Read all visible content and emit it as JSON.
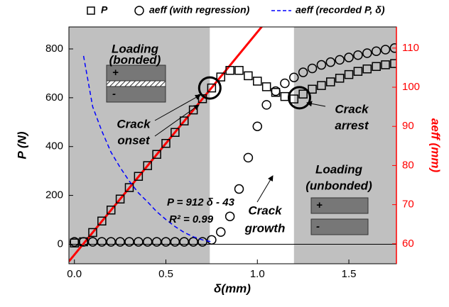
{
  "chart_data": {
    "type": "scatter",
    "xlabel": "δ(mm)",
    "ylabel": "P (N)",
    "y2label": "aeff (mm)",
    "xlim": [
      -0.03,
      1.76
    ],
    "ylim": [
      -80,
      890
    ],
    "y2lim": [
      54.9,
      115.4
    ],
    "xticks": [
      {
        "value": 0,
        "label": "0.0"
      },
      {
        "value": 0.5,
        "label": "0.5"
      },
      {
        "value": 1,
        "label": "1.0"
      },
      {
        "value": 1.5,
        "label": "1.5"
      }
    ],
    "yticks": [
      0,
      200,
      400,
      600,
      800
    ],
    "y2ticks": [
      60,
      70,
      80,
      90,
      100,
      110
    ],
    "y2color": "#ff0000",
    "x": [
      0,
      0.05,
      0.1,
      0.15,
      0.2,
      0.25,
      0.3,
      0.35,
      0.4,
      0.45,
      0.5,
      0.55,
      0.6,
      0.65,
      0.7,
      0.75,
      0.8,
      0.85,
      0.9,
      0.95,
      1,
      1.05,
      1.1,
      1.15,
      1.2,
      1.25,
      1.3,
      1.35,
      1.4,
      1.45,
      1.5,
      1.55,
      1.6,
      1.65,
      1.7,
      1.75
    ],
    "series": [
      {
        "name": "P",
        "color": "#000000",
        "marker": "square",
        "values": [
          5,
          10,
          48,
          95,
          140,
          185,
          232,
          278,
          322,
          368,
          413,
          458,
          505,
          550,
          596,
          640,
          685,
          712,
          712,
          690,
          668,
          645,
          622,
          605,
          595,
          615,
          635,
          650,
          665,
          680,
          695,
          708,
          718,
          728,
          735,
          740
        ]
      },
      {
        "name": "aeff (with regression)",
        "color": "#000000",
        "marker": "circle",
        "axis": "y2",
        "values": [
          60.5,
          60.5,
          60.5,
          60.5,
          60.5,
          60.5,
          60.5,
          60.5,
          60.5,
          60.5,
          60.5,
          60.5,
          60.5,
          60.5,
          60.5,
          61,
          63,
          67,
          74,
          82,
          90,
          95.5,
          99,
          101,
          102.5,
          103.8,
          104.8,
          105.7,
          106.4,
          107,
          107.6,
          108.2,
          108.7,
          109.2,
          109.6,
          110
        ]
      },
      {
        "name": "aeff (recorded P, δ)",
        "color": "#0000ff",
        "marker": "dashed-line",
        "axis": "y2",
        "values": [
          null,
          108,
          95,
          88.8,
          83.4,
          79.5,
          76,
          73,
          70.7,
          68.2,
          66.2,
          64.4,
          62.9,
          61.8,
          61,
          60.5,
          null,
          null,
          null,
          null,
          null,
          null,
          null,
          null,
          null,
          null,
          null,
          null,
          null,
          null,
          null,
          null,
          null,
          null,
          null,
          null
        ]
      }
    ],
    "fit": {
      "slope": 912,
      "intercept": -43,
      "color": "#ff0000",
      "label": "P = 912 δ - 43",
      "r2_label": "R² = 0.99"
    },
    "shaded_regions": [
      [
        -0.03,
        0.74
      ],
      [
        1.2,
        1.76
      ]
    ],
    "shade_color": "#c0c0c0",
    "highlight_points": [
      {
        "x": 0.74,
        "y": 640
      },
      {
        "x": 1.23,
        "y": 600
      }
    ],
    "annotations": {
      "loading_bonded": [
        "Loading",
        "(bonded)"
      ],
      "crack_onset": [
        "Crack",
        "onset"
      ],
      "crack_arrest": [
        "Crack",
        "arrest"
      ],
      "crack_growth": [
        "Crack",
        "growth"
      ],
      "loading_unbonded": [
        "Loading",
        "(unbonded)"
      ],
      "plus": "+",
      "minus": "-"
    }
  }
}
